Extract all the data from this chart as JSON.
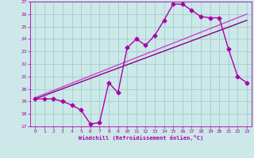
{
  "xlabel": "Windchill (Refroidissement éolien,°C)",
  "xlim": [
    -0.5,
    23.5
  ],
  "ylim": [
    17,
    27
  ],
  "xticks": [
    0,
    1,
    2,
    3,
    4,
    5,
    6,
    7,
    8,
    9,
    10,
    11,
    12,
    13,
    14,
    15,
    16,
    17,
    18,
    19,
    20,
    21,
    22,
    23
  ],
  "yticks": [
    17,
    18,
    19,
    20,
    21,
    22,
    23,
    24,
    25,
    26,
    27
  ],
  "bg_color": "#cce8e8",
  "grid_color": "#aad0d0",
  "line_color": "#aa00aa",
  "line_color2": "#880088",
  "line_color3": "#cc44cc",
  "curve1_x": [
    0,
    1,
    2,
    3,
    4,
    5,
    6,
    7,
    8,
    9,
    10,
    11,
    12,
    13,
    14,
    15,
    16,
    17,
    18,
    19,
    20,
    21,
    22,
    23
  ],
  "curve1_y": [
    19.2,
    19.2,
    19.2,
    19.0,
    18.7,
    18.3,
    17.2,
    17.3,
    20.5,
    19.7,
    23.3,
    24.0,
    23.5,
    24.3,
    25.5,
    26.8,
    26.8,
    26.3,
    25.8,
    25.7,
    25.7,
    23.2,
    21.0,
    20.5
  ],
  "trend1_x": [
    0,
    23
  ],
  "trend1_y": [
    19.2,
    25.5
  ],
  "trend2_x": [
    0,
    23
  ],
  "trend2_y": [
    19.3,
    26.0
  ],
  "marker": "D",
  "markersize": 2.5,
  "linewidth": 1.0
}
